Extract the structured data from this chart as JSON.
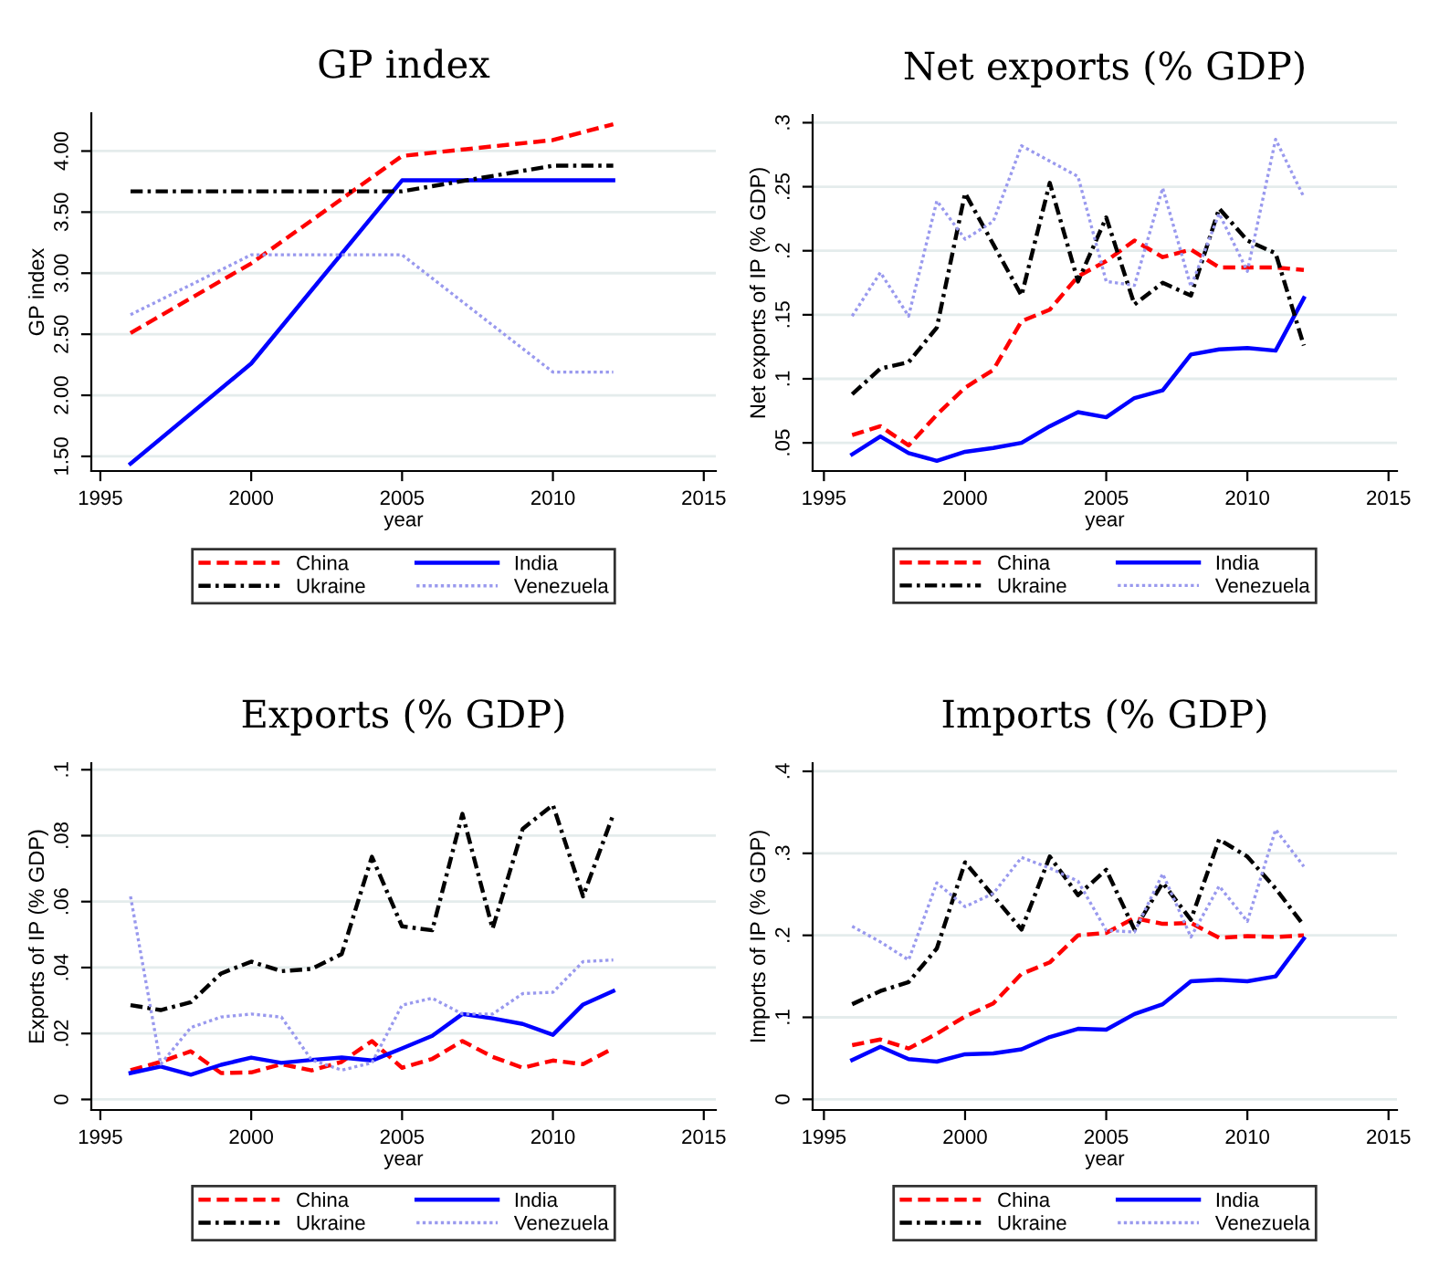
{
  "chart_data": [
    {
      "type": "line",
      "title": "GP index",
      "xlabel": "year",
      "ylabel": "GP index",
      "x": [
        1996,
        2000,
        2005,
        2010,
        2012
      ],
      "xlim": [
        1994.7,
        2015.4
      ],
      "xticks": [
        1995,
        2000,
        2005,
        2010,
        2015
      ],
      "ylim": [
        1.38,
        4.31
      ],
      "yticks": [
        {
          "value": 1.5,
          "label": "1.50"
        },
        {
          "value": 2.0,
          "label": "2.00"
        },
        {
          "value": 2.5,
          "label": "2.50"
        },
        {
          "value": 3.0,
          "label": "3.00"
        },
        {
          "value": 3.5,
          "label": "3.50"
        },
        {
          "value": 4.0,
          "label": "4.00"
        }
      ],
      "grid": "y",
      "legend": "bottom",
      "series": [
        {
          "name": "China",
          "color": "#ff0000",
          "line_style": "dashed",
          "values": [
            2.51,
            3.08,
            3.96,
            4.09,
            4.22
          ]
        },
        {
          "name": "India",
          "color": "#0000ff",
          "line_style": "solid",
          "values": [
            1.44,
            2.26,
            3.76,
            3.76,
            3.76
          ]
        },
        {
          "name": "Ukraine",
          "color": "#000000",
          "line_style": "dashdot",
          "values": [
            3.67,
            3.67,
            3.67,
            3.88,
            3.88
          ]
        },
        {
          "name": "Venezuela",
          "color": "#9999ee",
          "line_style": "dotted",
          "values": [
            2.66,
            3.15,
            3.15,
            2.19,
            2.19
          ]
        }
      ]
    },
    {
      "type": "line",
      "title": "Net exports (% GDP)",
      "xlabel": "year",
      "ylabel": "Net exports of IP (% GDP)",
      "x": [
        1996,
        1997,
        1998,
        1999,
        2000,
        2001,
        2002,
        2003,
        2004,
        2005,
        2006,
        2007,
        2008,
        2009,
        2010,
        2011,
        2012
      ],
      "xlim": [
        1994.6,
        2015.3
      ],
      "xticks": [
        1995,
        2000,
        2005,
        2010,
        2015
      ],
      "ylim": [
        0.028,
        0.306
      ],
      "yticks": [
        {
          "value": 0.05,
          "label": ".05"
        },
        {
          "value": 0.1,
          "label": ".1"
        },
        {
          "value": 0.15,
          "label": ".15"
        },
        {
          "value": 0.2,
          "label": ".2"
        },
        {
          "value": 0.25,
          "label": ".25"
        },
        {
          "value": 0.3,
          "label": ".3"
        }
      ],
      "grid": "y",
      "legend": "bottom",
      "series": [
        {
          "name": "China",
          "color": "#ff0000",
          "line_style": "dashed",
          "values": [
            0.056,
            0.063,
            0.048,
            0.072,
            0.093,
            0.107,
            0.145,
            0.154,
            0.18,
            0.192,
            0.208,
            0.195,
            0.201,
            0.187,
            0.187,
            0.187,
            0.185
          ]
        },
        {
          "name": "India",
          "color": "#0000ff",
          "line_style": "solid",
          "values": [
            0.041,
            0.055,
            0.042,
            0.036,
            0.043,
            0.046,
            0.05,
            0.063,
            0.074,
            0.07,
            0.085,
            0.091,
            0.119,
            0.123,
            0.124,
            0.122,
            0.163
          ]
        },
        {
          "name": "Ukraine",
          "color": "#000000",
          "line_style": "dashdot",
          "values": [
            0.088,
            0.108,
            0.113,
            0.14,
            0.245,
            0.205,
            0.165,
            0.253,
            0.176,
            0.226,
            0.158,
            0.175,
            0.165,
            0.233,
            0.208,
            0.198,
            0.126
          ]
        },
        {
          "name": "Venezuela",
          "color": "#9999ee",
          "line_style": "dotted",
          "values": [
            0.149,
            0.183,
            0.149,
            0.239,
            0.209,
            0.223,
            0.282,
            0.27,
            0.258,
            0.176,
            0.173,
            0.249,
            0.172,
            0.229,
            0.184,
            0.287,
            0.242
          ]
        }
      ]
    },
    {
      "type": "line",
      "title": "Exports (% GDP)",
      "xlabel": "year",
      "ylabel": "Exports of IP (% GDP)",
      "x": [
        1996,
        1997,
        1998,
        1999,
        2000,
        2001,
        2002,
        2003,
        2004,
        2005,
        2006,
        2007,
        2008,
        2009,
        2010,
        2011,
        2012
      ],
      "xlim": [
        1994.7,
        2015.4
      ],
      "xticks": [
        1995,
        2000,
        2005,
        2010,
        2015
      ],
      "ylim": [
        -0.0032,
        0.102
      ],
      "yticks": [
        0,
        {
          "value": 0.02,
          "label": ".02"
        },
        {
          "value": 0.04,
          "label": ".04"
        },
        {
          "value": 0.06,
          "label": ".06"
        },
        {
          "value": 0.08,
          "label": ".08"
        },
        {
          "value": 0.1,
          "label": ".1"
        }
      ],
      "grid": "y",
      "legend": "bottom",
      "series": [
        {
          "name": "China",
          "color": "#ff0000",
          "line_style": "dashed",
          "values": [
            0.0089,
            0.0114,
            0.0146,
            0.008,
            0.0082,
            0.0107,
            0.0088,
            0.0114,
            0.0177,
            0.0096,
            0.0123,
            0.0177,
            0.0129,
            0.0096,
            0.0118,
            0.0107,
            0.0155
          ]
        },
        {
          "name": "India",
          "color": "#0000ff",
          "line_style": "solid",
          "values": [
            0.008,
            0.01,
            0.0075,
            0.0105,
            0.0127,
            0.0111,
            0.012,
            0.0127,
            0.0118,
            0.0155,
            0.0193,
            0.0259,
            0.0246,
            0.0229,
            0.0196,
            0.0288,
            0.0329
          ]
        },
        {
          "name": "Ukraine",
          "color": "#000000",
          "line_style": "dashdot",
          "values": [
            0.0286,
            0.0271,
            0.0295,
            0.0382,
            0.0418,
            0.0389,
            0.0396,
            0.0441,
            0.0736,
            0.0525,
            0.0513,
            0.0866,
            0.0518,
            0.0821,
            0.0893,
            0.0616,
            0.0864
          ]
        },
        {
          "name": "Venezuela",
          "color": "#9999ee",
          "line_style": "dotted",
          "values": [
            0.0616,
            0.0107,
            0.0218,
            0.025,
            0.0259,
            0.025,
            0.012,
            0.0089,
            0.0111,
            0.0286,
            0.0307,
            0.0259,
            0.0259,
            0.0321,
            0.0325,
            0.0418,
            0.0423
          ]
        }
      ]
    },
    {
      "type": "line",
      "title": "Imports (% GDP)",
      "xlabel": "year",
      "ylabel": "Imports of IP (% GDP)",
      "x": [
        1996,
        1997,
        1998,
        1999,
        2000,
        2001,
        2002,
        2003,
        2004,
        2005,
        2006,
        2007,
        2008,
        2009,
        2010,
        2011,
        2012
      ],
      "xlim": [
        1994.6,
        2015.3
      ],
      "xticks": [
        1995,
        2000,
        2005,
        2010,
        2015
      ],
      "ylim": [
        -0.013,
        0.41
      ],
      "yticks": [
        0,
        {
          "value": 0.1,
          "label": ".1"
        },
        {
          "value": 0.2,
          "label": ".2"
        },
        {
          "value": 0.3,
          "label": ".3"
        },
        {
          "value": 0.4,
          "label": ".4"
        }
      ],
      "grid": "y",
      "legend": "bottom",
      "series": [
        {
          "name": "China",
          "color": "#ff0000",
          "line_style": "dashed",
          "values": [
            0.066,
            0.073,
            0.062,
            0.08,
            0.101,
            0.117,
            0.153,
            0.167,
            0.2,
            0.203,
            0.221,
            0.214,
            0.215,
            0.197,
            0.199,
            0.198,
            0.2
          ]
        },
        {
          "name": "India",
          "color": "#0000ff",
          "line_style": "solid",
          "values": [
            0.048,
            0.064,
            0.049,
            0.046,
            0.055,
            0.056,
            0.061,
            0.076,
            0.086,
            0.085,
            0.104,
            0.116,
            0.144,
            0.146,
            0.144,
            0.15,
            0.196
          ]
        },
        {
          "name": "Ukraine",
          "color": "#000000",
          "line_style": "dashdot",
          "values": [
            0.116,
            0.132,
            0.143,
            0.184,
            0.289,
            0.248,
            0.207,
            0.296,
            0.249,
            0.28,
            0.207,
            0.264,
            0.219,
            0.317,
            0.296,
            0.257,
            0.212
          ]
        },
        {
          "name": "Venezuela",
          "color": "#9999ee",
          "line_style": "dotted",
          "values": [
            0.211,
            0.192,
            0.17,
            0.264,
            0.235,
            0.251,
            0.295,
            0.282,
            0.266,
            0.206,
            0.204,
            0.275,
            0.198,
            0.26,
            0.217,
            0.329,
            0.284
          ]
        }
      ]
    }
  ]
}
